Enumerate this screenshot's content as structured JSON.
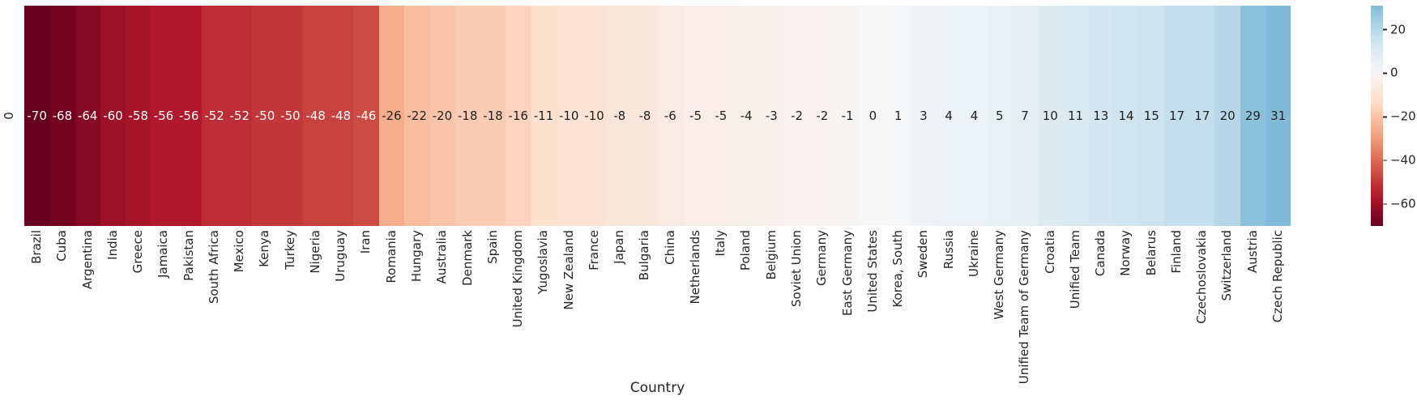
{
  "chart_data": {
    "type": "heatmap",
    "title": "",
    "xlabel": "Country",
    "ylabel": "",
    "row_labels": [
      "0"
    ],
    "categories": [
      "Brazil",
      "Cuba",
      "Argentina",
      "India",
      "Greece",
      "Jamaica",
      "Pakistan",
      "South Africa",
      "Mexico",
      "Kenya",
      "Turkey",
      "Nigeria",
      "Uruguay",
      "Iran",
      "Romania",
      "Hungary",
      "Australia",
      "Denmark",
      "Spain",
      "United Kingdom",
      "Yugoslavia",
      "New Zealand",
      "France",
      "Japan",
      "Bulgaria",
      "China",
      "Netherlands",
      "Italy",
      "Poland",
      "Belgium",
      "Soviet Union",
      "Germany",
      "East Germany",
      "United States",
      "Korea, South",
      "Sweden",
      "Russia",
      "Ukraine",
      "West Germany",
      "Unified Team of Germany",
      "Croatia",
      "Unified Team",
      "Canada",
      "Norway",
      "Belarus",
      "Finland",
      "Czechoslovakia",
      "Switzerland",
      "Austria",
      "Czech Republic"
    ],
    "values": [
      -70,
      -68,
      -64,
      -60,
      -58,
      -56,
      -56,
      -52,
      -52,
      -50,
      -50,
      -48,
      -48,
      -46,
      -26,
      -22,
      -20,
      -18,
      -18,
      -16,
      -11,
      -10,
      -10,
      -8,
      -8,
      -6,
      -5,
      -5,
      -4,
      -3,
      -2,
      -2,
      -1,
      0,
      1,
      3,
      4,
      4,
      5,
      7,
      10,
      11,
      13,
      14,
      15,
      17,
      17,
      20,
      29,
      31
    ],
    "colormap": "RdBu",
    "vmin": -70,
    "vmax": 31,
    "center": 0,
    "annotations_on": true,
    "grid": false,
    "colorbar": {
      "position": "right",
      "ticks": [
        {
          "label": "20",
          "value": 20
        },
        {
          "label": "0",
          "value": 0
        },
        {
          "label": "−20",
          "value": -20
        },
        {
          "label": "−40",
          "value": -40
        },
        {
          "label": "−60",
          "value": -60
        }
      ]
    },
    "colors": {
      "annotation_dark": "#1f1f1f",
      "annotation_light": "#ffffff",
      "tick_label": "#262626",
      "background": "#ffffff"
    }
  }
}
